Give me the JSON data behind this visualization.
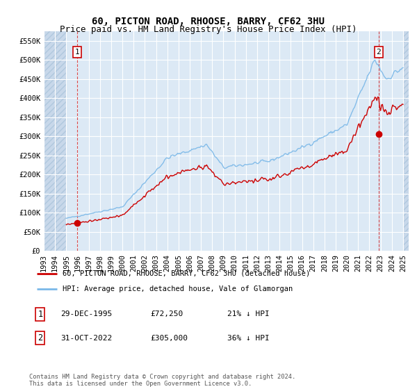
{
  "title1": "60, PICTON ROAD, RHOOSE, BARRY, CF62 3HU",
  "title2": "Price paid vs. HM Land Registry's House Price Index (HPI)",
  "ylim": [
    0,
    575000
  ],
  "xlim_start": 1993.0,
  "xlim_end": 2025.5,
  "hpi_color": "#7ab8e8",
  "price_color": "#cc0000",
  "marker1_date": 1995.99,
  "marker1_value": 72250,
  "marker2_date": 2022.83,
  "marker2_value": 305000,
  "legend_label1": "60, PICTON ROAD, RHOOSE, BARRY, CF62 3HU (detached house)",
  "legend_label2": "HPI: Average price, detached house, Vale of Glamorgan",
  "note1_num": "1",
  "note1_date": "29-DEC-1995",
  "note1_price": "£72,250",
  "note1_hpi": "21% ↓ HPI",
  "note2_num": "2",
  "note2_date": "31-OCT-2022",
  "note2_price": "£305,000",
  "note2_hpi": "36% ↓ HPI",
  "footer": "Contains HM Land Registry data © Crown copyright and database right 2024.\nThis data is licensed under the Open Government Licence v3.0.",
  "bg_color": "#dce9f5",
  "hatch_color": "#c8d8ea",
  "grid_color": "#ffffff",
  "title_fontsize": 10,
  "subtitle_fontsize": 9,
  "tick_fontsize": 7.5
}
